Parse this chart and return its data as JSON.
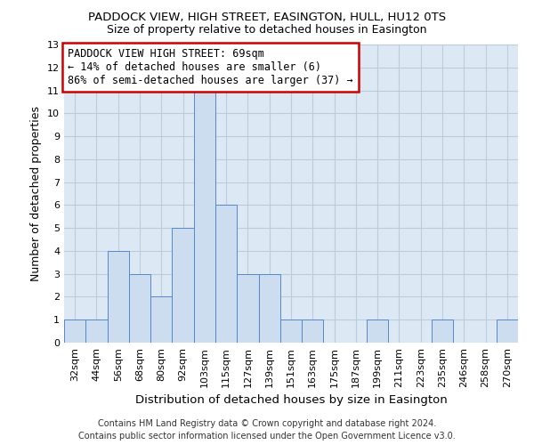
{
  "title": "PADDOCK VIEW, HIGH STREET, EASINGTON, HULL, HU12 0TS",
  "subtitle": "Size of property relative to detached houses in Easington",
  "xlabel": "Distribution of detached houses by size in Easington",
  "ylabel": "Number of detached properties",
  "categories": [
    "32sqm",
    "44sqm",
    "56sqm",
    "68sqm",
    "80sqm",
    "92sqm",
    "103sqm",
    "115sqm",
    "127sqm",
    "139sqm",
    "151sqm",
    "163sqm",
    "175sqm",
    "187sqm",
    "199sqm",
    "211sqm",
    "223sqm",
    "235sqm",
    "246sqm",
    "258sqm",
    "270sqm"
  ],
  "values": [
    1,
    1,
    4,
    3,
    2,
    5,
    11,
    6,
    3,
    3,
    1,
    1,
    0,
    0,
    1,
    0,
    0,
    1,
    0,
    0,
    1
  ],
  "bar_color": "#ccddf0",
  "bar_edge_color": "#5588cc",
  "annotation_text": "PADDOCK VIEW HIGH STREET: 69sqm\n← 14% of detached houses are smaller (6)\n86% of semi-detached houses are larger (37) →",
  "annotation_box_color": "white",
  "annotation_box_edge_color": "#cc0000",
  "ylim": [
    0,
    13
  ],
  "yticks": [
    0,
    1,
    2,
    3,
    4,
    5,
    6,
    7,
    8,
    9,
    10,
    11,
    12,
    13
  ],
  "grid_color": "#bbccdd",
  "background_color": "#dde8f5",
  "footer_line1": "Contains HM Land Registry data © Crown copyright and database right 2024.",
  "footer_line2": "Contains public sector information licensed under the Open Government Licence v3.0.",
  "title_fontsize": 9.5,
  "subtitle_fontsize": 9,
  "xlabel_fontsize": 9.5,
  "ylabel_fontsize": 9,
  "tick_fontsize": 8,
  "annotation_fontsize": 8.5,
  "footer_fontsize": 7
}
